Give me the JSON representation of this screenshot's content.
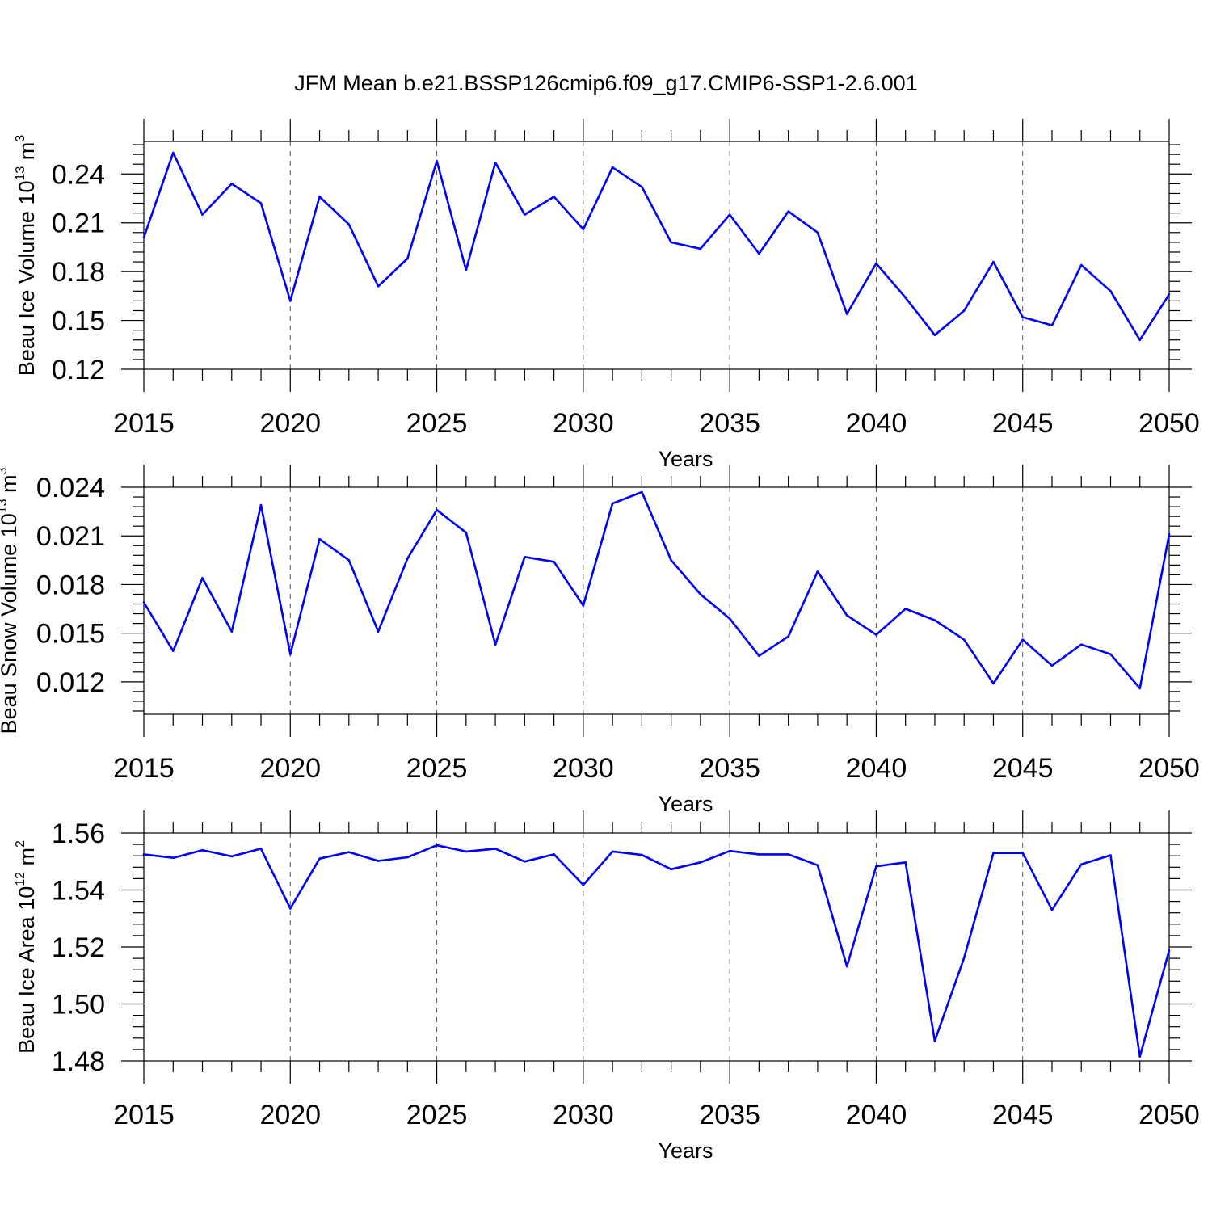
{
  "title": "JFM Mean b.e21.BSSP126cmip6.f09_g17.CMIP6-SSP1-2.6.001",
  "chart_data": [
    {
      "type": "line",
      "id": "ice-volume",
      "ylabel_prefix": "Beau Ice Volume 10",
      "ylabel_exp": "13",
      "ylabel_unit": " m",
      "ylabel_unit_exp": "3",
      "xlabel": "Years",
      "xlim": [
        2015,
        2050
      ],
      "ylim": [
        0.12,
        0.26
      ],
      "xticks": [
        2015,
        2020,
        2025,
        2030,
        2035,
        2040,
        2045,
        2050
      ],
      "xtick_labels": [
        "2015",
        "2020",
        "2025",
        "2030",
        "2035",
        "2040",
        "2045",
        "2050"
      ],
      "yticks": [
        0.12,
        0.15,
        0.18,
        0.21,
        0.24
      ],
      "ytick_labels": [
        "0.12",
        "0.15",
        "0.18",
        "0.21",
        "0.24"
      ],
      "grid": "dashed vertical at major x ticks",
      "color": "#0000ff",
      "x": [
        2015,
        2016,
        2017,
        2018,
        2019,
        2020,
        2021,
        2022,
        2023,
        2024,
        2025,
        2026,
        2027,
        2028,
        2029,
        2030,
        2031,
        2032,
        2033,
        2034,
        2035,
        2036,
        2037,
        2038,
        2039,
        2040,
        2041,
        2042,
        2043,
        2044,
        2045,
        2046,
        2047,
        2048,
        2049,
        2050
      ],
      "values": [
        0.201,
        0.253,
        0.215,
        0.234,
        0.222,
        0.162,
        0.226,
        0.209,
        0.171,
        0.188,
        0.248,
        0.181,
        0.247,
        0.215,
        0.226,
        0.206,
        0.244,
        0.232,
        0.198,
        0.194,
        0.215,
        0.191,
        0.217,
        0.204,
        0.154,
        0.185,
        0.164,
        0.141,
        0.156,
        0.186,
        0.152,
        0.147,
        0.184,
        0.168,
        0.138,
        0.166
      ]
    },
    {
      "type": "line",
      "id": "snow-volume",
      "ylabel_prefix": "Beau Snow Volume 10",
      "ylabel_exp": "13",
      "ylabel_unit": " m",
      "ylabel_unit_exp": "3",
      "xlabel": "Years",
      "xlim": [
        2015,
        2050
      ],
      "ylim": [
        0.01,
        0.024
      ],
      "xticks": [
        2015,
        2020,
        2025,
        2030,
        2035,
        2040,
        2045,
        2050
      ],
      "xtick_labels": [
        "2015",
        "2020",
        "2025",
        "2030",
        "2035",
        "2040",
        "2045",
        "2050"
      ],
      "yticks": [
        0.012,
        0.015,
        0.018,
        0.021,
        0.024
      ],
      "ytick_labels": [
        "0.012",
        "0.015",
        "0.018",
        "0.021",
        "0.024"
      ],
      "grid": "dashed vertical at major x ticks",
      "color": "#0000ff",
      "x": [
        2015,
        2016,
        2017,
        2018,
        2019,
        2020,
        2021,
        2022,
        2023,
        2024,
        2025,
        2026,
        2027,
        2028,
        2029,
        2030,
        2031,
        2032,
        2033,
        2034,
        2035,
        2036,
        2037,
        2038,
        2039,
        2040,
        2041,
        2042,
        2043,
        2044,
        2045,
        2046,
        2047,
        2048,
        2049,
        2050
      ],
      "values": [
        0.0169,
        0.0139,
        0.0184,
        0.0151,
        0.0229,
        0.0137,
        0.0208,
        0.0195,
        0.0151,
        0.0196,
        0.0226,
        0.0212,
        0.0143,
        0.0197,
        0.0194,
        0.0167,
        0.023,
        0.0237,
        0.0195,
        0.0174,
        0.0159,
        0.0136,
        0.0148,
        0.0188,
        0.0161,
        0.0149,
        0.0165,
        0.0158,
        0.0146,
        0.0119,
        0.0146,
        0.013,
        0.0143,
        0.0137,
        0.0116,
        0.0211
      ]
    },
    {
      "type": "line",
      "id": "ice-area",
      "ylabel_prefix": "Beau Ice Area 10",
      "ylabel_exp": "12",
      "ylabel_unit": " m",
      "ylabel_unit_exp": "2",
      "xlabel": "Years",
      "xlim": [
        2015,
        2050
      ],
      "ylim": [
        1.48,
        1.56
      ],
      "xticks": [
        2015,
        2020,
        2025,
        2030,
        2035,
        2040,
        2045,
        2050
      ],
      "xtick_labels": [
        "2015",
        "2020",
        "2025",
        "2030",
        "2035",
        "2040",
        "2045",
        "2050"
      ],
      "yticks": [
        1.48,
        1.5,
        1.52,
        1.54,
        1.56
      ],
      "ytick_labels": [
        "1.48",
        "1.50",
        "1.52",
        "1.54",
        "1.56"
      ],
      "grid": "dashed vertical at major x ticks",
      "color": "#0000ff",
      "x": [
        2015,
        2016,
        2017,
        2018,
        2019,
        2020,
        2021,
        2022,
        2023,
        2024,
        2025,
        2026,
        2027,
        2028,
        2029,
        2030,
        2031,
        2032,
        2033,
        2034,
        2035,
        2036,
        2037,
        2038,
        2039,
        2040,
        2041,
        2042,
        2043,
        2044,
        2045,
        2046,
        2047,
        2048,
        2049,
        2050
      ],
      "values": [
        1.5525,
        1.5513,
        1.554,
        1.5518,
        1.5545,
        1.5335,
        1.551,
        1.5533,
        1.5502,
        1.5515,
        1.5557,
        1.5535,
        1.5545,
        1.55,
        1.5525,
        1.5418,
        1.5535,
        1.5523,
        1.5473,
        1.5497,
        1.5537,
        1.5525,
        1.5525,
        1.5487,
        1.5132,
        1.5483,
        1.5497,
        1.487,
        1.5162,
        1.553,
        1.553,
        1.533,
        1.549,
        1.5522,
        1.4815,
        1.5188
      ]
    }
  ]
}
